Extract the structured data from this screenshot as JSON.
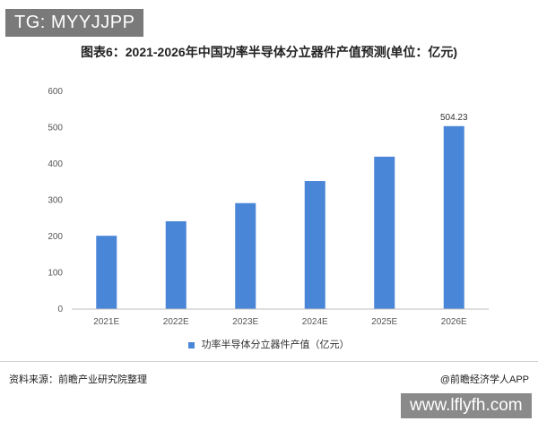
{
  "watermark_top": "TG: MYYJJPP",
  "watermark_bottom": "www.lflyfh.com",
  "source_text": "资料来源：前瞻产业研究院整理",
  "credit_text": "@前瞻经济学人APP",
  "chart_data": {
    "type": "bar",
    "title": "图表6：2021-2026年中国功率半导体分立器件产值预测(单位：亿元)",
    "categories": [
      "2021E",
      "2022E",
      "2023E",
      "2024E",
      "2025E",
      "2026E"
    ],
    "series": [
      {
        "name": "功率半导体分立器件产值（亿元）",
        "values": [
          202,
          242,
          292,
          353,
          420,
          504.23
        ],
        "color": "#4a86d8"
      }
    ],
    "data_labels": [
      null,
      null,
      null,
      null,
      null,
      "504.23"
    ],
    "ylim": [
      0,
      600
    ],
    "yticks": [
      0,
      100,
      200,
      300,
      400,
      500,
      600
    ],
    "grid": false,
    "legend": "bottom"
  }
}
